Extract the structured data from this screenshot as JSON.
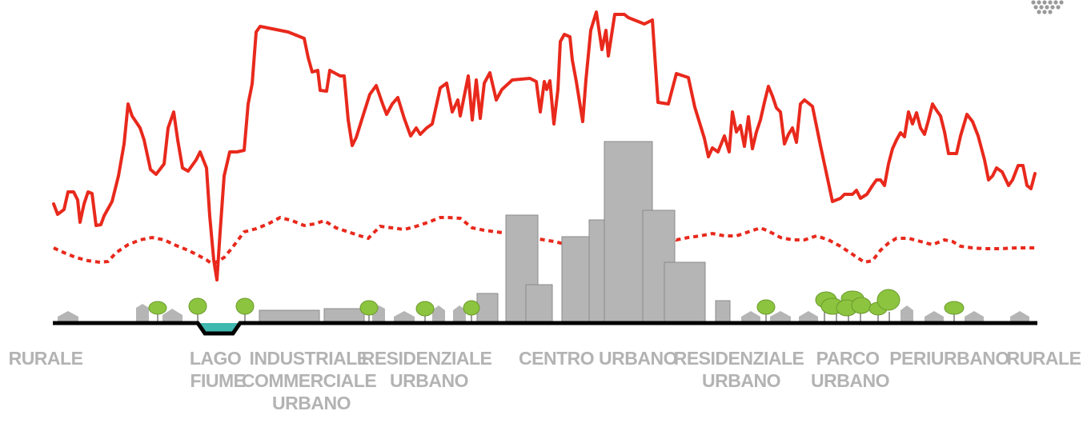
{
  "colors": {
    "temperature_line": "#e8291c",
    "dashed_line": "#e8291c",
    "ground": "#000000",
    "water": "#3fb8b0",
    "buildings": "#b5b5b5",
    "trees": "#8cc43f",
    "labels": "#b3b3b3"
  },
  "zones": {
    "rurale_left": {
      "lines": [
        "RURALE"
      ]
    },
    "lago_fiume": {
      "lines": [
        "LAGO",
        "FIUME"
      ]
    },
    "industriale": {
      "lines": [
        "INDUSTRIALE",
        "COMMERCIALE",
        "URBANO"
      ]
    },
    "residenziale_left": {
      "lines": [
        "RESIDENZIALE",
        "URBANO"
      ]
    },
    "centro_urbano": {
      "lines": [
        "CENTRO URBANO"
      ]
    },
    "residenziale_right": {
      "lines": [
        "RESIDENZIALE",
        "URBANO"
      ]
    },
    "parco_urbano": {
      "lines": [
        "PARCO",
        "URBANO"
      ]
    },
    "periurbano": {
      "lines": [
        "PERIURBANO"
      ]
    },
    "rurale_right": {
      "lines": [
        "RURALE"
      ]
    }
  },
  "icons": {
    "corner_logo": "dot-pattern-icon"
  }
}
